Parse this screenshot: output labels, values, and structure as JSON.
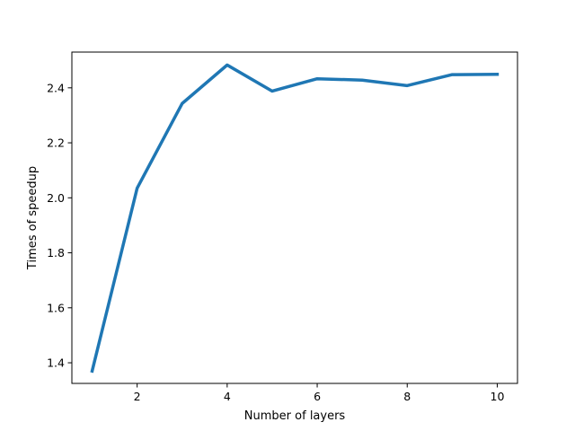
{
  "chart_data": {
    "type": "line",
    "title": "",
    "xlabel": "Number of layers",
    "ylabel": "Times of speedup",
    "xlim": [
      0.55,
      10.45
    ],
    "ylim": [
      1.325,
      2.53
    ],
    "x_ticks": [
      2,
      4,
      6,
      8,
      10
    ],
    "y_ticks": [
      1.4,
      1.6,
      1.8,
      2.0,
      2.2,
      2.4
    ],
    "x_tick_labels": [
      "2",
      "4",
      "6",
      "8",
      "10"
    ],
    "y_tick_labels": [
      "1.4",
      "1.6",
      "1.8",
      "2.0",
      "2.2",
      "2.4"
    ],
    "grid": false,
    "series": [
      {
        "color": "#1f77b4",
        "x": [
          1,
          2,
          3,
          4,
          5,
          6,
          7,
          8,
          9,
          10
        ],
        "y": [
          1.37,
          2.035,
          2.343,
          2.483,
          2.388,
          2.433,
          2.428,
          2.408,
          2.448,
          2.449
        ]
      }
    ]
  }
}
